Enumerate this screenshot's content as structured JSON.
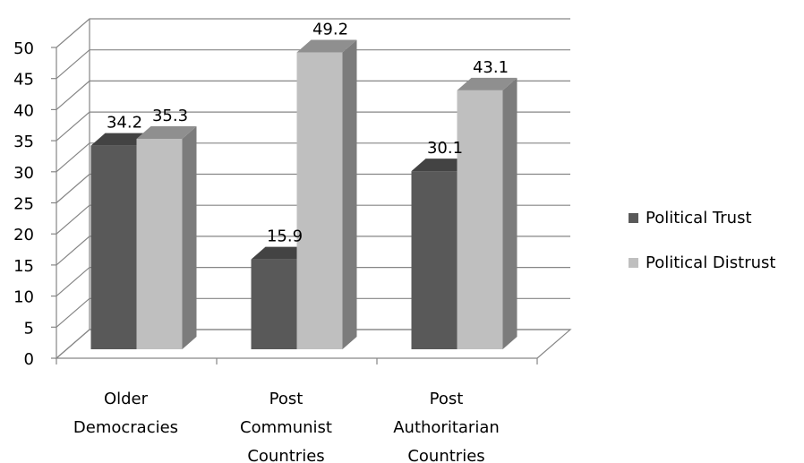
{
  "chart_data": {
    "type": "bar",
    "categories": [
      [
        "Older",
        "Democracies"
      ],
      [
        "Post",
        "Communist",
        "Countries"
      ],
      [
        "Post",
        "Authoritarian",
        "Countries"
      ]
    ],
    "series": [
      {
        "name": "Political Trust",
        "values": [
          34.2,
          15.9,
          30.1
        ],
        "color": "#595959"
      },
      {
        "name": "Political Distrust",
        "values": [
          35.3,
          49.2,
          43.1
        ],
        "color": "#bfbfbf"
      }
    ],
    "ylim": [
      0,
      50
    ],
    "yticks": [
      0,
      5,
      10,
      15,
      20,
      25,
      30,
      35,
      40,
      45,
      50
    ],
    "grid": true,
    "legend": "right",
    "style": "3d-column"
  }
}
